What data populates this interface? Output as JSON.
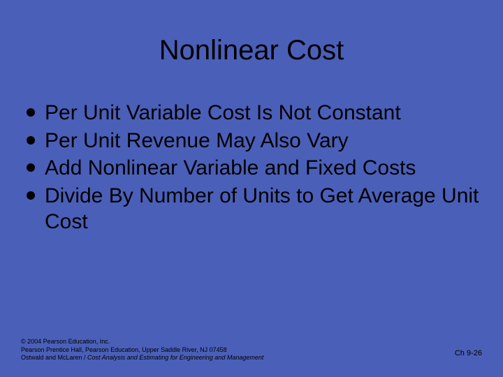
{
  "slide": {
    "background_color": "#4a5fb8",
    "text_color": "#000000",
    "title": "Nonlinear Cost",
    "title_fontsize": 40,
    "bullet_fontsize": 30,
    "bullet_marker_color": "#000000",
    "bullets": [
      "Per Unit Variable Cost Is Not Constant",
      "Per Unit Revenue May Also Vary",
      "Add Nonlinear Variable and Fixed Costs",
      "Divide By Number of Units to Get Average Unit Cost"
    ],
    "footer": {
      "copyright": "© 2004 Pearson Education, Inc.",
      "publisher": "Pearson Prentice Hall, Pearson Education, Upper Saddle River, NJ 07458",
      "book_authors": "Ostwald and McLaren / ",
      "book_title": "Cost Analysis and Estimating for Engineering and Management",
      "page_ref": "Ch 9-26",
      "fontsize": 9
    }
  }
}
